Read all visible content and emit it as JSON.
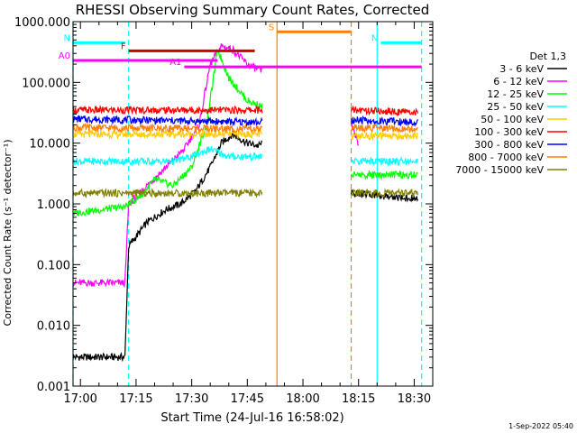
{
  "chart_data": {
    "type": "line",
    "title": "RHESSI Observing Summary Count Rates, Corrected",
    "xlabel": "Start Time (24-Jul-16 16:58:02)",
    "ylabel": "Corrected Count Rate (s⁻¹ detector⁻¹)",
    "y_scale": "log",
    "ylim": [
      0.001,
      1000
    ],
    "x_range_minutes": [
      "16:58",
      "18:35"
    ],
    "y_tick_labels": [
      "1000.000",
      "100.000",
      "10.000",
      "1.000",
      "0.100",
      "0.010",
      "0.001"
    ],
    "x_tick_labels": [
      "17:00",
      "17:15",
      "17:30",
      "17:45",
      "18:00",
      "18:15",
      "18:30"
    ],
    "legend_title": "Det 1,3",
    "legend_placement": "right",
    "footer_date": "1-Sep-2022 05:40",
    "series": [
      {
        "name": "3 - 6 keV",
        "color": "#000000",
        "points": [
          [
            "16:58",
            0.003
          ],
          [
            "17:11",
            0.003
          ],
          [
            "17:12",
            0.003
          ],
          [
            "17:13",
            0.2
          ],
          [
            "17:18",
            0.5
          ],
          [
            "17:23",
            0.8
          ],
          [
            "17:27",
            1.0
          ],
          [
            "17:31",
            1.6
          ],
          [
            "17:35",
            4.0
          ],
          [
            "17:38",
            10
          ],
          [
            "17:41",
            14
          ],
          [
            "17:45",
            10
          ],
          [
            "17:48",
            9
          ],
          [
            "17:49",
            10
          ]
        ],
        "segment2": [
          [
            "18:13",
            1.5
          ],
          [
            "18:31",
            1.2
          ]
        ]
      },
      {
        "name": "6 - 12 keV",
        "color": "#ff00ff",
        "points": [
          [
            "16:58",
            0.05
          ],
          [
            "17:12",
            0.05
          ],
          [
            "17:13",
            1.0
          ],
          [
            "17:18",
            2.0
          ],
          [
            "17:23",
            4.0
          ],
          [
            "17:28",
            8
          ],
          [
            "17:32",
            20
          ],
          [
            "17:35",
            200
          ],
          [
            "17:38",
            400
          ],
          [
            "17:41",
            350
          ],
          [
            "17:45",
            200
          ],
          [
            "17:49",
            150
          ]
        ],
        "segment2": [
          [
            "18:13",
            20
          ],
          [
            "18:15",
            10
          ]
        ]
      },
      {
        "name": "12 - 25 keV",
        "color": "#00ff00",
        "points": [
          [
            "16:58",
            0.7
          ],
          [
            "17:12",
            0.9
          ],
          [
            "17:16",
            1.3
          ],
          [
            "17:20",
            2.5
          ],
          [
            "17:25",
            2.0
          ],
          [
            "17:30",
            4
          ],
          [
            "17:34",
            20
          ],
          [
            "17:37",
            350
          ],
          [
            "17:40",
            120
          ],
          [
            "17:45",
            50
          ],
          [
            "17:49",
            40
          ]
        ],
        "segment2": [
          [
            "18:13",
            3
          ],
          [
            "18:31",
            3
          ]
        ]
      },
      {
        "name": "25 - 50 keV",
        "color": "#00ffff",
        "points": [
          [
            "16:58",
            5
          ],
          [
            "17:25",
            5
          ],
          [
            "17:30",
            6
          ],
          [
            "17:35",
            8
          ],
          [
            "17:40",
            6
          ],
          [
            "17:49",
            6
          ]
        ],
        "segment2": [
          [
            "18:13",
            5
          ],
          [
            "18:31",
            5
          ]
        ]
      },
      {
        "name": "50 - 100 keV",
        "color": "#ffcc00",
        "points": [
          [
            "16:58",
            14
          ],
          [
            "17:49",
            14
          ]
        ],
        "segment2": [
          [
            "18:13",
            13
          ],
          [
            "18:31",
            13
          ]
        ]
      },
      {
        "name": "100 - 300 keV",
        "color": "#ff0000",
        "points": [
          [
            "16:58",
            35
          ],
          [
            "17:49",
            35
          ]
        ],
        "segment2": [
          [
            "18:13",
            35
          ],
          [
            "18:31",
            32
          ]
        ]
      },
      {
        "name": "300 - 800 keV",
        "color": "#0000ff",
        "points": [
          [
            "16:58",
            25
          ],
          [
            "17:49",
            22
          ]
        ],
        "segment2": [
          [
            "18:13",
            24
          ],
          [
            "18:31",
            22
          ]
        ]
      },
      {
        "name": "800 - 7000 keV",
        "color": "#ff8000",
        "points": [
          [
            "16:58",
            18
          ],
          [
            "17:49",
            17
          ]
        ],
        "segment2": [
          [
            "18:13",
            18
          ],
          [
            "18:31",
            17
          ]
        ]
      },
      {
        "name": "7000 - 15000 keV",
        "color": "#808000",
        "points": [
          [
            "16:58",
            1.5
          ],
          [
            "17:49",
            1.5
          ]
        ],
        "segment2": [
          [
            "18:13",
            1.5
          ],
          [
            "18:31",
            1.5
          ]
        ]
      }
    ],
    "state_bars": [
      {
        "label": "N",
        "color": "#00ffff",
        "start": "16:58",
        "end": "17:12",
        "level": 450
      },
      {
        "label": "N",
        "color": "#00ffff",
        "start": "18:21",
        "end": "18:32",
        "level": 450
      },
      {
        "label": "F",
        "color": "#cc0000",
        "start": "17:13",
        "end": "17:47",
        "level": 330
      },
      {
        "label": "A0",
        "color": "#ff00ff",
        "start": "16:58",
        "end": "17:37",
        "level": 230
      },
      {
        "label": "A1",
        "color": "#ff00ff",
        "start": "17:28",
        "end": "18:32",
        "level": 180
      },
      {
        "label": "S",
        "color": "#ff8000",
        "start": "17:53",
        "end": "18:13",
        "level": 680
      }
    ],
    "vlines": [
      {
        "time": "16:58",
        "color": "#00ffff",
        "style": "dashed"
      },
      {
        "time": "17:13",
        "color": "#00ffff",
        "style": "dashed"
      },
      {
        "time": "17:53",
        "color": "#ff8000",
        "style": "solid"
      },
      {
        "time": "18:13",
        "color": "#ff8000",
        "style": "dashed"
      },
      {
        "time": "18:20",
        "color": "#00ffff",
        "style": "solid"
      },
      {
        "time": "18:32",
        "color": "#00ffff",
        "style": "dashed"
      }
    ]
  }
}
